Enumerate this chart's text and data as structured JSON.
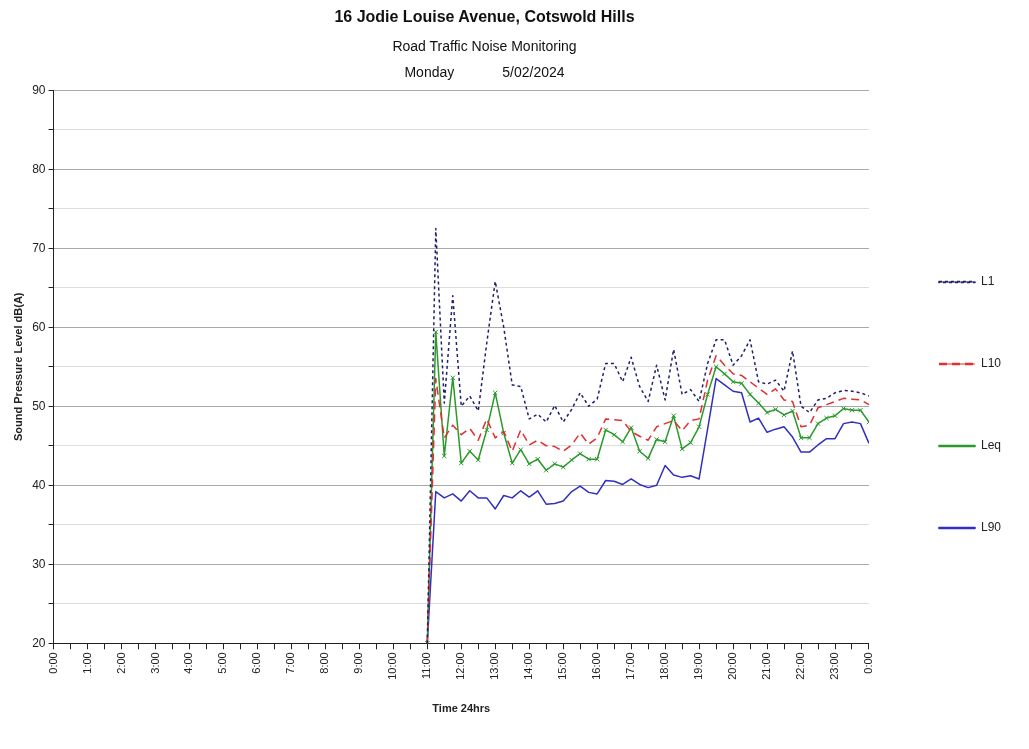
{
  "chart_data": {
    "type": "line",
    "title": "16 Jodie Louise Avenue, Cotswold Hills",
    "subtitle": "Road Traffic Noise Monitoring",
    "annotations": [
      "Monday",
      "5/02/2024"
    ],
    "xlabel": "Time 24hrs",
    "ylabel": "Sound Pressure Level dB(A)",
    "x": [
      11,
      11.25,
      11.5,
      11.75,
      12,
      12.25,
      12.5,
      12.75,
      13,
      13.25,
      13.5,
      13.75,
      14,
      14.25,
      14.5,
      14.75,
      15,
      15.25,
      15.5,
      15.75,
      16,
      16.25,
      16.5,
      16.75,
      17,
      17.25,
      17.5,
      17.75,
      18,
      18.25,
      18.5,
      18.75,
      19,
      19.25,
      19.5,
      19.75,
      20,
      20.25,
      20.5,
      20.75,
      21,
      21.25,
      21.5,
      21.75,
      22,
      22.25,
      22.5,
      22.75,
      23,
      23.25,
      23.5,
      23.75,
      24
    ],
    "series": [
      {
        "name": "L1",
        "color": "#1f1f6e",
        "line_style": "dotted",
        "marker": "none",
        "values": [
          20,
          72.5,
          50.4,
          64,
          50,
          51.3,
          49.4,
          58,
          65.8,
          60,
          52.7,
          52.5,
          48.4,
          49,
          48,
          50.1,
          48,
          49.6,
          51.7,
          50,
          50.9,
          55.4,
          55.4,
          53.1,
          56.2,
          52.5,
          50.6,
          55.2,
          50.8,
          57.2,
          51.5,
          52.1,
          50.6,
          55.4,
          58.4,
          58.4,
          55.2,
          56.4,
          58.4,
          53.1,
          52.8,
          53.3,
          51.9,
          57,
          50,
          49.2,
          50.8,
          51,
          51.7,
          52,
          51.9,
          51.7,
          51.3
        ]
      },
      {
        "name": "L10",
        "color": "#e03030",
        "line_style": "dashed",
        "marker": "none",
        "values": [
          20,
          53.5,
          46,
          47.6,
          46.4,
          47.2,
          45.7,
          48.4,
          46,
          46.8,
          44.3,
          47,
          45.1,
          45.7,
          45,
          44.9,
          44.3,
          45.1,
          46.6,
          45.2,
          46,
          48.4,
          48.3,
          48.2,
          46.8,
          46.2,
          45.7,
          47.4,
          47.8,
          48.2,
          46.9,
          48.2,
          48.4,
          53.3,
          56.4,
          55.2,
          54.1,
          53.9,
          53.1,
          52.3,
          51.5,
          52.2,
          50.8,
          50.6,
          47.4,
          47.6,
          49.8,
          50.2,
          50.6,
          51,
          50.9,
          50.8,
          50.2
        ]
      },
      {
        "name": "Leq",
        "color": "#2a9a2a",
        "line_style": "solid",
        "marker": "cross",
        "values": [
          20,
          59.4,
          43.7,
          53.6,
          42.8,
          44.3,
          43.2,
          47,
          51.7,
          46.6,
          42.8,
          44.5,
          42.7,
          43.3,
          41.9,
          42.7,
          42.3,
          43.2,
          44,
          43.3,
          43.3,
          47,
          46.4,
          45.5,
          47.3,
          44.3,
          43.4,
          45.8,
          45.5,
          48.8,
          44.6,
          45.4,
          47.4,
          51.5,
          55,
          54.1,
          53.1,
          52.9,
          51.5,
          50.4,
          49.2,
          49.6,
          48.9,
          49.4,
          46,
          46,
          47.8,
          48.5,
          48.8,
          49.7,
          49.5,
          49.5,
          48
        ]
      },
      {
        "name": "L90",
        "color": "#3030c0",
        "line_style": "solid",
        "marker": "none",
        "values": [
          20,
          39.2,
          38.4,
          38.9,
          38,
          39.3,
          38.4,
          38.4,
          37,
          38.7,
          38.4,
          39.3,
          38.5,
          39.3,
          37.6,
          37.7,
          38,
          39.2,
          39.9,
          39.1,
          38.9,
          40.6,
          40.5,
          40.1,
          40.8,
          40.1,
          39.7,
          40,
          42.5,
          41.3,
          41,
          41.2,
          40.8,
          47.1,
          53.5,
          52.7,
          51.9,
          51.7,
          48,
          48.5,
          46.7,
          47.1,
          47.4,
          46.1,
          44.2,
          44.2,
          45.1,
          45.9,
          45.9,
          47.8,
          48,
          47.8,
          45.3
        ]
      }
    ],
    "xlim": [
      0,
      24
    ],
    "xticks": [
      {
        "value": 0,
        "label": "0:00"
      },
      {
        "value": 0.5,
        "label": null
      },
      {
        "value": 1,
        "label": "1:00"
      },
      {
        "value": 1.5,
        "label": null
      },
      {
        "value": 2,
        "label": "2:00"
      },
      {
        "value": 2.5,
        "label": null
      },
      {
        "value": 3,
        "label": "3:00"
      },
      {
        "value": 3.5,
        "label": null
      },
      {
        "value": 4,
        "label": "4:00"
      },
      {
        "value": 4.5,
        "label": null
      },
      {
        "value": 5,
        "label": "5:00"
      },
      {
        "value": 5.5,
        "label": null
      },
      {
        "value": 6,
        "label": "6:00"
      },
      {
        "value": 6.5,
        "label": null
      },
      {
        "value": 7,
        "label": "7:00"
      },
      {
        "value": 7.5,
        "label": null
      },
      {
        "value": 8,
        "label": "8:00"
      },
      {
        "value": 8.5,
        "label": null
      },
      {
        "value": 9,
        "label": "9:00"
      },
      {
        "value": 9.5,
        "label": null
      },
      {
        "value": 10,
        "label": "10:00"
      },
      {
        "value": 10.5,
        "label": null
      },
      {
        "value": 11,
        "label": "11:00"
      },
      {
        "value": 11.5,
        "label": null
      },
      {
        "value": 12,
        "label": "12:00"
      },
      {
        "value": 12.5,
        "label": null
      },
      {
        "value": 13,
        "label": "13:00"
      },
      {
        "value": 13.5,
        "label": null
      },
      {
        "value": 14,
        "label": "14:00"
      },
      {
        "value": 14.5,
        "label": null
      },
      {
        "value": 15,
        "label": "15:00"
      },
      {
        "value": 15.5,
        "label": null
      },
      {
        "value": 16,
        "label": "16:00"
      },
      {
        "value": 16.5,
        "label": null
      },
      {
        "value": 17,
        "label": "17:00"
      },
      {
        "value": 17.5,
        "label": null
      },
      {
        "value": 18,
        "label": "18:00"
      },
      {
        "value": 18.5,
        "label": null
      },
      {
        "value": 19,
        "label": "19:00"
      },
      {
        "value": 19.5,
        "label": null
      },
      {
        "value": 20,
        "label": "20:00"
      },
      {
        "value": 20.5,
        "label": null
      },
      {
        "value": 21,
        "label": "21:00"
      },
      {
        "value": 21.5,
        "label": null
      },
      {
        "value": 22,
        "label": "22:00"
      },
      {
        "value": 22.5,
        "label": null
      },
      {
        "value": 23,
        "label": "23:00"
      },
      {
        "value": 23.5,
        "label": null
      },
      {
        "value": 24,
        "label": "0:00"
      }
    ],
    "ylim": [
      20,
      90
    ],
    "yticks": [
      20,
      {
        "value": 25,
        "label": null
      },
      30,
      {
        "value": 35,
        "label": null
      },
      40,
      {
        "value": 45,
        "label": null
      },
      50,
      {
        "value": 55,
        "label": null
      },
      60,
      {
        "value": 65,
        "label": null
      },
      70,
      {
        "value": 75,
        "label": null
      },
      80,
      {
        "value": 85,
        "label": null
      },
      90
    ],
    "grid": "y",
    "legend": "right"
  }
}
